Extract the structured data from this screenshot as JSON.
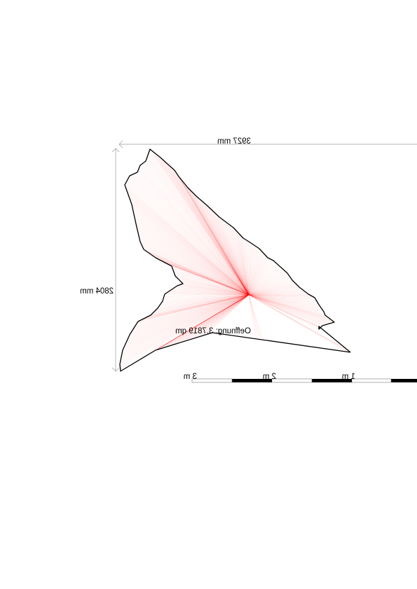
{
  "dimensions": {
    "width_label": "3927 mm",
    "height_label": "2804 mm"
  },
  "opening_label": "Oeffnung: 3.7819 qm",
  "scale_bar": {
    "labels": [
      "1 m",
      "2 m",
      "3 m"
    ]
  },
  "colors": {
    "rays": "#ff0000",
    "outline": "#000000",
    "dimension_lines": "#9a9a9a"
  }
}
